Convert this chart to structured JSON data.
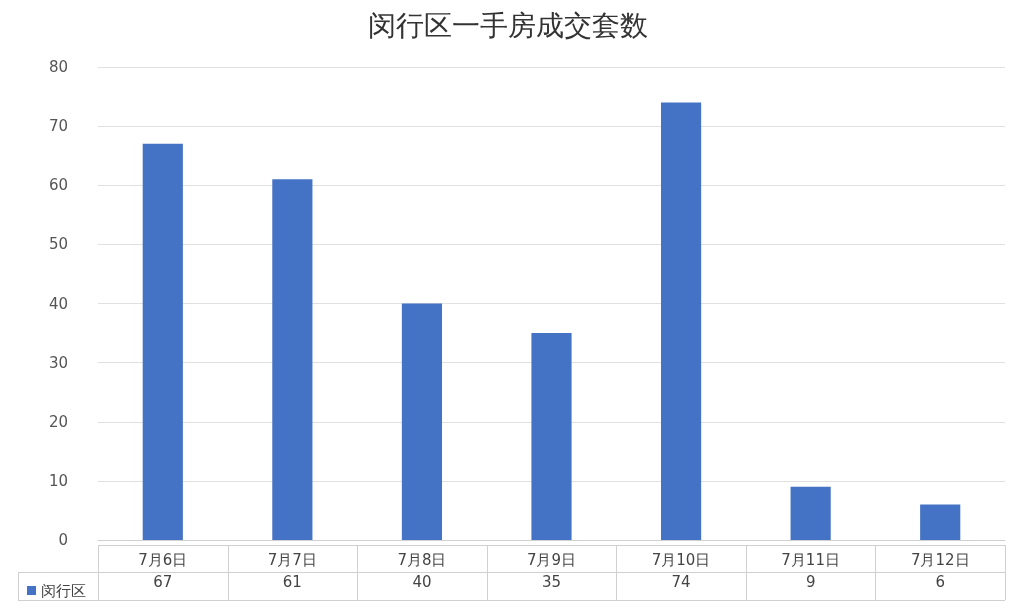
{
  "chart_data": {
    "type": "bar",
    "title": "闵行区一手房成交套数",
    "categories": [
      "7月6日",
      "7月7日",
      "7月8日",
      "7月9日",
      "7月10日",
      "7月11日",
      "7月12日"
    ],
    "series": [
      {
        "name": "闵行区",
        "color": "#4472c4",
        "values": [
          67,
          61,
          40,
          35,
          74,
          9,
          6
        ]
      }
    ],
    "ylim": [
      0,
      80
    ],
    "yticks": [
      0,
      10,
      20,
      30,
      40,
      50,
      60,
      70,
      80
    ],
    "grid": "y",
    "data_labels": true,
    "legend": "bottom left"
  }
}
